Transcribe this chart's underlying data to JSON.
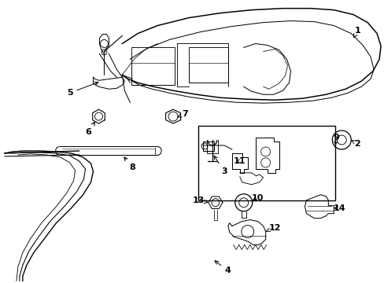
{
  "bg_color": "#ffffff",
  "line_color": "#000000",
  "fig_width": 4.89,
  "fig_height": 3.6,
  "dpi": 100,
  "lw": 0.9
}
